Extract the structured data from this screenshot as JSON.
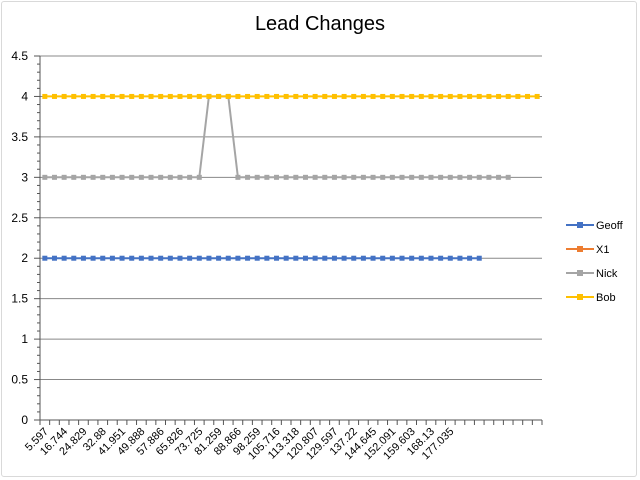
{
  "chart_data": {
    "type": "line",
    "title": "Lead Changes",
    "xlabel": "",
    "ylabel": "",
    "ylim": [
      0,
      4.5
    ],
    "yticks": [
      0,
      0.5,
      1,
      1.5,
      2,
      2.5,
      3,
      3.5,
      4,
      4.5
    ],
    "tick_labels": [
      "5.597",
      "16.744",
      "24.829",
      "32.88",
      "41.951",
      "49.888",
      "57.886",
      "65.826",
      "73.725",
      "81.259",
      "88.866",
      "98.259",
      "105.716",
      "113.318",
      "120.807",
      "129.597",
      "137.22",
      "144.645",
      "152.091",
      "159.603",
      "168.13",
      "177.035"
    ],
    "grid": true,
    "legend_position": "right",
    "series": [
      {
        "name": "Geoff",
        "color": "#4472C4",
        "values": [
          2,
          2,
          2,
          2,
          2,
          2,
          2,
          2,
          2,
          2,
          2,
          2,
          2,
          2,
          2,
          2,
          2,
          2,
          2,
          2,
          2,
          2,
          2,
          2,
          2,
          2,
          2,
          2,
          2,
          2,
          2,
          2,
          2,
          2,
          2,
          2,
          2,
          2,
          2,
          2,
          2,
          2,
          2,
          2,
          2,
          2
        ]
      },
      {
        "name": "X1",
        "color": "#ED7D31",
        "values": []
      },
      {
        "name": "Nick",
        "color": "#A5A5A5",
        "values": [
          3,
          3,
          3,
          3,
          3,
          3,
          3,
          3,
          3,
          3,
          3,
          3,
          3,
          3,
          3,
          3,
          3,
          4,
          4,
          4,
          3,
          3,
          3,
          3,
          3,
          3,
          3,
          3,
          3,
          3,
          3,
          3,
          3,
          3,
          3,
          3,
          3,
          3,
          3,
          3,
          3,
          3,
          3,
          3,
          3,
          3,
          3,
          3,
          3
        ]
      },
      {
        "name": "Bob",
        "color": "#FFC000",
        "values": [
          4,
          4,
          4,
          4,
          4,
          4,
          4,
          4,
          4,
          4,
          4,
          4,
          4,
          4,
          4,
          4,
          4,
          4,
          4,
          4,
          4,
          4,
          4,
          4,
          4,
          4,
          4,
          4,
          4,
          4,
          4,
          4,
          4,
          4,
          4,
          4,
          4,
          4,
          4,
          4,
          4,
          4,
          4,
          4,
          4,
          4,
          4,
          4,
          4,
          4,
          4,
          4
        ]
      }
    ]
  }
}
